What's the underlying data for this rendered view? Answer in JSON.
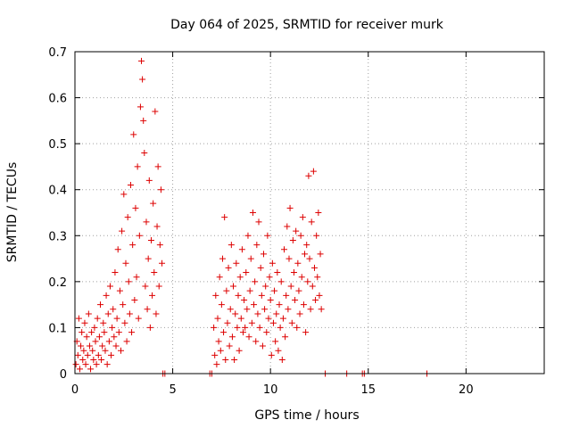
{
  "chart_data": {
    "type": "scatter",
    "title": "Day 064 of 2025, SRMTID for receiver murk",
    "xlabel": "GPS time / hours",
    "ylabel": "SRMTID / TECUs",
    "xlim": [
      0,
      24
    ],
    "ylim": [
      0,
      0.7
    ],
    "xticks": [
      "0",
      "5",
      "10",
      "15",
      "20"
    ],
    "yticks": [
      "0",
      "0.1",
      "0.2",
      "0.3",
      "0.4",
      "0.5",
      "0.6",
      "0.7"
    ],
    "grid": true,
    "legend": "none",
    "marker": "plus",
    "color": "#dd0000",
    "series": [
      {
        "points": [
          [
            0.05,
            0.02
          ],
          [
            0.1,
            0.07
          ],
          [
            0.15,
            0.04
          ],
          [
            0.2,
            0.12
          ],
          [
            0.25,
            0.01
          ],
          [
            0.3,
            0.06
          ],
          [
            0.35,
            0.09
          ],
          [
            0.4,
            0.03
          ],
          [
            0.45,
            0.05
          ],
          [
            0.5,
            0.11
          ],
          [
            0.55,
            0.02
          ],
          [
            0.6,
            0.08
          ],
          [
            0.65,
            0.04
          ],
          [
            0.7,
            0.13
          ],
          [
            0.75,
            0.06
          ],
          [
            0.8,
            0.01
          ],
          [
            0.85,
            0.09
          ],
          [
            0.9,
            0.05
          ],
          [
            0.95,
            0.03
          ],
          [
            1.0,
            0.1
          ],
          [
            1.05,
            0.07
          ],
          [
            1.1,
            0.02
          ],
          [
            1.15,
            0.12
          ],
          [
            1.2,
            0.04
          ],
          [
            1.25,
            0.08
          ],
          [
            1.3,
            0.15
          ],
          [
            1.35,
            0.03
          ],
          [
            1.4,
            0.06
          ],
          [
            1.45,
            0.11
          ],
          [
            1.5,
            0.09
          ],
          [
            1.55,
            0.05
          ],
          [
            1.6,
            0.17
          ],
          [
            1.65,
            0.02
          ],
          [
            1.7,
            0.13
          ],
          [
            1.75,
            0.07
          ],
          [
            1.8,
            0.19
          ],
          [
            1.85,
            0.04
          ],
          [
            1.9,
            0.1
          ],
          [
            1.95,
            0.14
          ],
          [
            2.0,
            0.08
          ],
          [
            2.05,
            0.22
          ],
          [
            2.1,
            0.06
          ],
          [
            2.15,
            0.12
          ],
          [
            2.2,
            0.27
          ],
          [
            2.25,
            0.09
          ],
          [
            2.3,
            0.18
          ],
          [
            2.35,
            0.05
          ],
          [
            2.4,
            0.31
          ],
          [
            2.45,
            0.15
          ],
          [
            2.5,
            0.39
          ],
          [
            2.55,
            0.11
          ],
          [
            2.6,
            0.24
          ],
          [
            2.65,
            0.07
          ],
          [
            2.7,
            0.34
          ],
          [
            2.75,
            0.2
          ],
          [
            2.8,
            0.13
          ],
          [
            2.85,
            0.41
          ],
          [
            2.9,
            0.09
          ],
          [
            2.95,
            0.28
          ],
          [
            3.0,
            0.52
          ],
          [
            3.05,
            0.16
          ],
          [
            3.1,
            0.36
          ],
          [
            3.15,
            0.21
          ],
          [
            3.2,
            0.45
          ],
          [
            3.25,
            0.12
          ],
          [
            3.3,
            0.3
          ],
          [
            3.35,
            0.58
          ],
          [
            3.4,
            0.68
          ],
          [
            3.45,
            0.64
          ],
          [
            3.5,
            0.55
          ],
          [
            3.55,
            0.48
          ],
          [
            3.6,
            0.19
          ],
          [
            3.65,
            0.33
          ],
          [
            3.7,
            0.14
          ],
          [
            3.75,
            0.25
          ],
          [
            3.8,
            0.42
          ],
          [
            3.85,
            0.1
          ],
          [
            3.9,
            0.29
          ],
          [
            3.95,
            0.17
          ],
          [
            4.0,
            0.37
          ],
          [
            4.05,
            0.22
          ],
          [
            4.1,
            0.57
          ],
          [
            4.15,
            0.13
          ],
          [
            4.2,
            0.32
          ],
          [
            4.25,
            0.45
          ],
          [
            4.3,
            0.19
          ],
          [
            4.35,
            0.28
          ],
          [
            4.4,
            0.4
          ],
          [
            4.45,
            0.24
          ],
          [
            4.5,
            0.0
          ],
          [
            4.6,
            0.0
          ],
          [
            6.9,
            0.0
          ],
          [
            7.0,
            0.0
          ],
          [
            7.1,
            0.1
          ],
          [
            7.15,
            0.04
          ],
          [
            7.2,
            0.17
          ],
          [
            7.25,
            0.02
          ],
          [
            7.3,
            0.12
          ],
          [
            7.35,
            0.07
          ],
          [
            7.4,
            0.21
          ],
          [
            7.45,
            0.05
          ],
          [
            7.5,
            0.15
          ],
          [
            7.55,
            0.25
          ],
          [
            7.6,
            0.09
          ],
          [
            7.65,
            0.34
          ],
          [
            7.7,
            0.03
          ],
          [
            7.75,
            0.18
          ],
          [
            7.8,
            0.11
          ],
          [
            7.85,
            0.23
          ],
          [
            7.9,
            0.06
          ],
          [
            7.95,
            0.14
          ],
          [
            8.0,
            0.28
          ],
          [
            8.05,
            0.08
          ],
          [
            8.1,
            0.19
          ],
          [
            8.15,
            0.03
          ],
          [
            8.2,
            0.13
          ],
          [
            8.25,
            0.24
          ],
          [
            8.3,
            0.1
          ],
          [
            8.35,
            0.17
          ],
          [
            8.4,
            0.05
          ],
          [
            8.45,
            0.21
          ],
          [
            8.5,
            0.12
          ],
          [
            8.55,
            0.27
          ],
          [
            8.6,
            0.09
          ],
          [
            8.65,
            0.16
          ],
          [
            8.7,
            0.1
          ],
          [
            8.75,
            0.22
          ],
          [
            8.8,
            0.14
          ],
          [
            8.85,
            0.3
          ],
          [
            8.9,
            0.08
          ],
          [
            8.95,
            0.18
          ],
          [
            9.0,
            0.25
          ],
          [
            9.05,
            0.11
          ],
          [
            9.1,
            0.35
          ],
          [
            9.15,
            0.15
          ],
          [
            9.2,
            0.2
          ],
          [
            9.25,
            0.07
          ],
          [
            9.3,
            0.28
          ],
          [
            9.35,
            0.13
          ],
          [
            9.4,
            0.33
          ],
          [
            9.45,
            0.1
          ],
          [
            9.5,
            0.23
          ],
          [
            9.55,
            0.17
          ],
          [
            9.6,
            0.06
          ],
          [
            9.65,
            0.26
          ],
          [
            9.7,
            0.14
          ],
          [
            9.75,
            0.19
          ],
          [
            9.8,
            0.09
          ],
          [
            9.85,
            0.3
          ],
          [
            9.9,
            0.12
          ],
          [
            9.95,
            0.21
          ],
          [
            10.0,
            0.16
          ],
          [
            10.05,
            0.04
          ],
          [
            10.1,
            0.24
          ],
          [
            10.15,
            0.11
          ],
          [
            10.2,
            0.18
          ],
          [
            10.25,
            0.07
          ],
          [
            10.3,
            0.13
          ],
          [
            10.35,
            0.22
          ],
          [
            10.4,
            0.05
          ],
          [
            10.45,
            0.15
          ],
          [
            10.5,
            0.1
          ],
          [
            10.55,
            0.2
          ],
          [
            10.6,
            0.03
          ],
          [
            10.65,
            0.12
          ],
          [
            10.7,
            0.27
          ],
          [
            10.75,
            0.08
          ],
          [
            10.8,
            0.17
          ],
          [
            10.85,
            0.32
          ],
          [
            10.9,
            0.14
          ],
          [
            10.95,
            0.25
          ],
          [
            11.0,
            0.36
          ],
          [
            11.05,
            0.19
          ],
          [
            11.1,
            0.11
          ],
          [
            11.15,
            0.29
          ],
          [
            11.2,
            0.22
          ],
          [
            11.25,
            0.16
          ],
          [
            11.3,
            0.31
          ],
          [
            11.35,
            0.1
          ],
          [
            11.4,
            0.24
          ],
          [
            11.45,
            0.18
          ],
          [
            11.5,
            0.13
          ],
          [
            11.55,
            0.3
          ],
          [
            11.6,
            0.21
          ],
          [
            11.65,
            0.34
          ],
          [
            11.7,
            0.15
          ],
          [
            11.75,
            0.26
          ],
          [
            11.8,
            0.09
          ],
          [
            11.85,
            0.28
          ],
          [
            11.9,
            0.2
          ],
          [
            11.95,
            0.43
          ],
          [
            12.0,
            0.25
          ],
          [
            12.05,
            0.14
          ],
          [
            12.1,
            0.33
          ],
          [
            12.15,
            0.19
          ],
          [
            12.2,
            0.44
          ],
          [
            12.25,
            0.23
          ],
          [
            12.3,
            0.16
          ],
          [
            12.35,
            0.3
          ],
          [
            12.4,
            0.21
          ],
          [
            12.45,
            0.35
          ],
          [
            12.5,
            0.17
          ],
          [
            12.55,
            0.26
          ],
          [
            12.6,
            0.14
          ],
          [
            12.8,
            0.0
          ],
          [
            13.9,
            0.0
          ],
          [
            14.7,
            0.0
          ],
          [
            14.8,
            0.0
          ],
          [
            18.0,
            0.0
          ]
        ]
      }
    ]
  }
}
